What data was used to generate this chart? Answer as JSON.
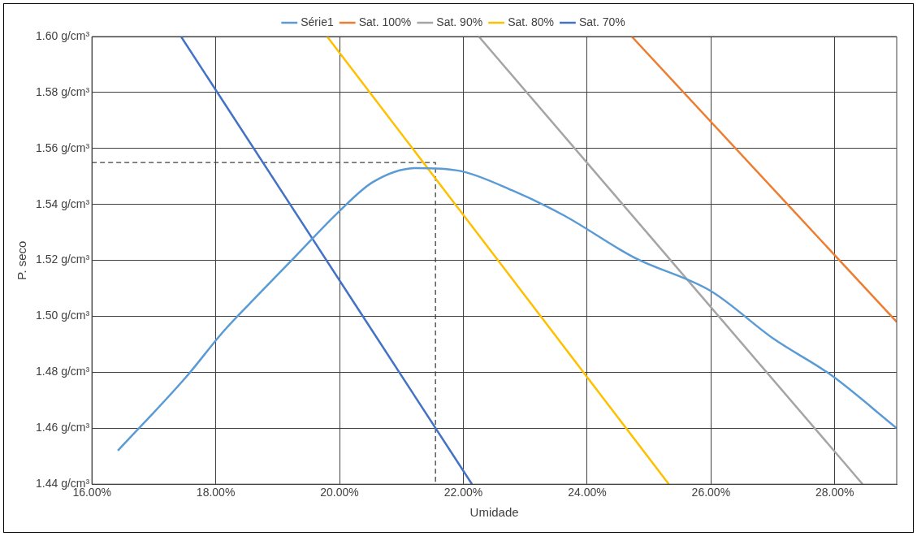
{
  "chart_data": {
    "type": "line",
    "xlabel": "Umidade",
    "ylabel": "P. seco",
    "legend": "top",
    "grid": true,
    "marker": "none",
    "line_style": "solid",
    "xlim": [
      16,
      29
    ],
    "xticks": [
      {
        "value": 16,
        "label": "16.00%"
      },
      {
        "value": 18,
        "label": "18.00%"
      },
      {
        "value": 20,
        "label": "20.00%"
      },
      {
        "value": 22,
        "label": "22.00%"
      },
      {
        "value": 24,
        "label": "24.00%"
      },
      {
        "value": 26,
        "label": "26.00%"
      },
      {
        "value": 28,
        "label": "28.00%"
      }
    ],
    "ylim": [
      1.44,
      1.6
    ],
    "yticks": [
      {
        "value": 1.44,
        "label": "1.44 g/cm³"
      },
      {
        "value": 1.46,
        "label": "1.46 g/cm³"
      },
      {
        "value": 1.48,
        "label": "1.48 g/cm³"
      },
      {
        "value": 1.5,
        "label": "1.50 g/cm³"
      },
      {
        "value": 1.52,
        "label": "1.52 g/cm³"
      },
      {
        "value": 1.54,
        "label": "1.54 g/cm³"
      },
      {
        "value": 1.56,
        "label": "1.56 g/cm³"
      },
      {
        "value": 1.58,
        "label": "1.58 g/cm³"
      },
      {
        "value": 1.6,
        "label": "1.60 g/cm³"
      }
    ],
    "series": [
      {
        "name": "Série1",
        "color": "#5b9bd5",
        "x": [
          16.42,
          17.51,
          18.14,
          18.7,
          19.27,
          19.97,
          20.54,
          21.24,
          21.94,
          22.79,
          23.63,
          24.76,
          26.0,
          27.01,
          27.94,
          29.0
        ],
        "values": [
          1.452,
          1.478,
          1.495,
          1.508,
          1.521,
          1.537,
          1.548,
          1.553,
          1.552,
          1.545,
          1.536,
          1.521,
          1.509,
          1.492,
          1.479,
          1.46
        ]
      },
      {
        "name": "Sat. 100%",
        "color": "#ed7d31",
        "x": [
          24.72,
          29.0
        ],
        "values": [
          1.6,
          1.498
        ]
      },
      {
        "name": "Sat. 90%",
        "color": "#a5a5a5",
        "x": [
          22.25,
          28.45
        ],
        "values": [
          1.6,
          1.44
        ]
      },
      {
        "name": "Sat. 80%",
        "color": "#ffc000",
        "x": [
          19.8,
          25.32
        ],
        "values": [
          1.6,
          1.44
        ]
      },
      {
        "name": "Sat. 70%",
        "color": "#4472c4",
        "x": [
          17.44,
          22.14
        ],
        "values": [
          1.6,
          1.44
        ]
      },
      {
        "color": "#404040",
        "line_style": "dashed",
        "x": [
          16,
          21.55,
          21.55
        ],
        "values": [
          1.555,
          1.555,
          1.44
        ]
      }
    ]
  }
}
